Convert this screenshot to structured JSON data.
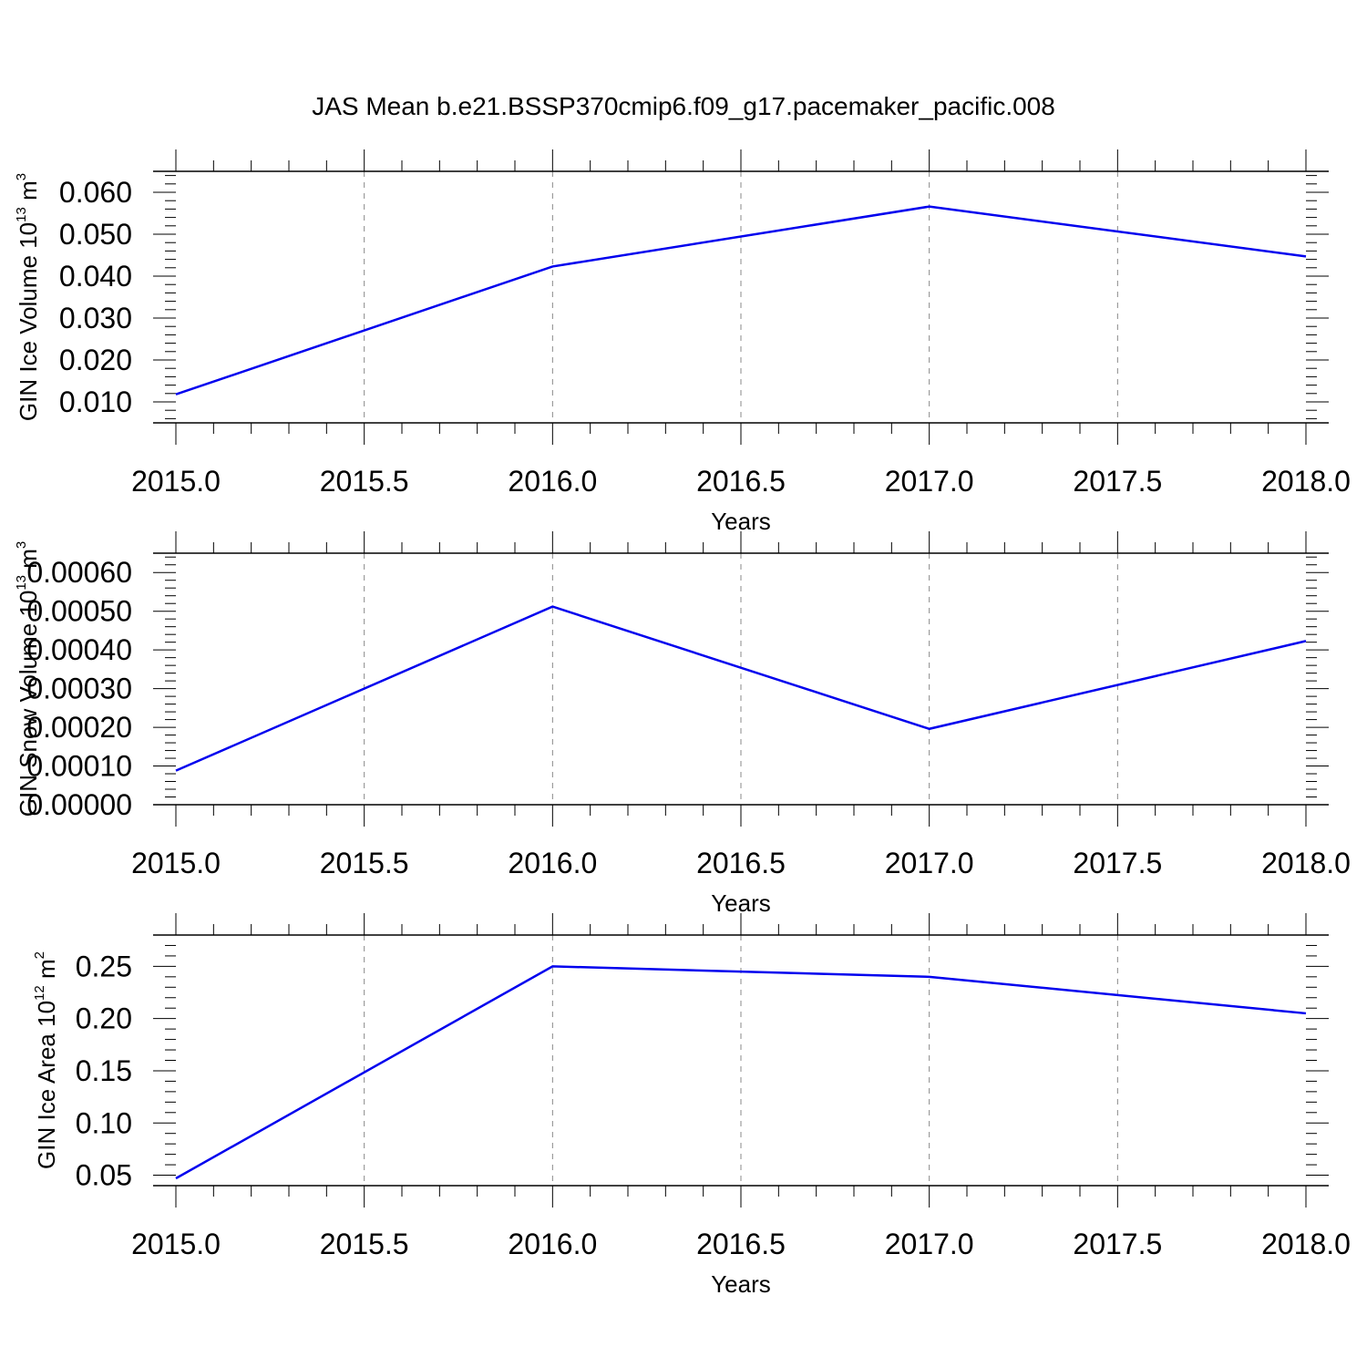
{
  "title": "JAS Mean b.e21.BSSP370cmip6.f09_g17.pacemaker_pacific.008",
  "colors": {
    "line": "#0000ee",
    "axis": "#000000",
    "grid": "#888888"
  },
  "chart_data": [
    {
      "type": "line",
      "xlabel": "Years",
      "ylabel": {
        "text": "GIN Ice Volume 10",
        "exp": "13",
        "unit": "m",
        "unit_exp": "3"
      },
      "xlim": [
        2015.0,
        2018.0
      ],
      "ylim": [
        0.005,
        0.065
      ],
      "x_ticks": [
        "2015.0",
        "2015.5",
        "2016.0",
        "2016.5",
        "2017.0",
        "2017.5",
        "2018.0"
      ],
      "y_ticks": [
        "0.010",
        "0.020",
        "0.030",
        "0.040",
        "0.050",
        "0.060"
      ],
      "x": [
        2015,
        2016,
        2017,
        2018
      ],
      "values": [
        0.0118,
        0.0423,
        0.0566,
        0.0447
      ],
      "grid": "x-dashed"
    },
    {
      "type": "line",
      "xlabel": "Years",
      "ylabel": {
        "text": "GIN Snow Volume 10",
        "exp": "13",
        "unit": "m",
        "unit_exp": "3"
      },
      "xlim": [
        2015.0,
        2018.0
      ],
      "ylim": [
        0.0,
        0.00065
      ],
      "x_ticks": [
        "2015.0",
        "2015.5",
        "2016.0",
        "2016.5",
        "2017.0",
        "2017.5",
        "2018.0"
      ],
      "y_ticks": [
        "0.00000",
        "0.00010",
        "0.00020",
        "0.00030",
        "0.00040",
        "0.00050",
        "0.00060"
      ],
      "x": [
        2015,
        2016,
        2017,
        2018
      ],
      "values": [
        8.8e-05,
        0.000512,
        0.000196,
        0.000423
      ],
      "grid": "x-dashed"
    },
    {
      "type": "line",
      "xlabel": "Years",
      "ylabel": {
        "text": "GIN Ice Area 10",
        "exp": "12",
        "unit": "m",
        "unit_exp": "2"
      },
      "xlim": [
        2015.0,
        2018.0
      ],
      "ylim": [
        0.04,
        0.28
      ],
      "x_ticks": [
        "2015.0",
        "2015.5",
        "2016.0",
        "2016.5",
        "2017.0",
        "2017.5",
        "2018.0"
      ],
      "y_ticks": [
        "0.05",
        "0.10",
        "0.15",
        "0.20",
        "0.25"
      ],
      "x": [
        2015,
        2016,
        2017,
        2018
      ],
      "values": [
        0.047,
        0.25,
        0.24,
        0.205
      ],
      "grid": "x-dashed"
    }
  ]
}
